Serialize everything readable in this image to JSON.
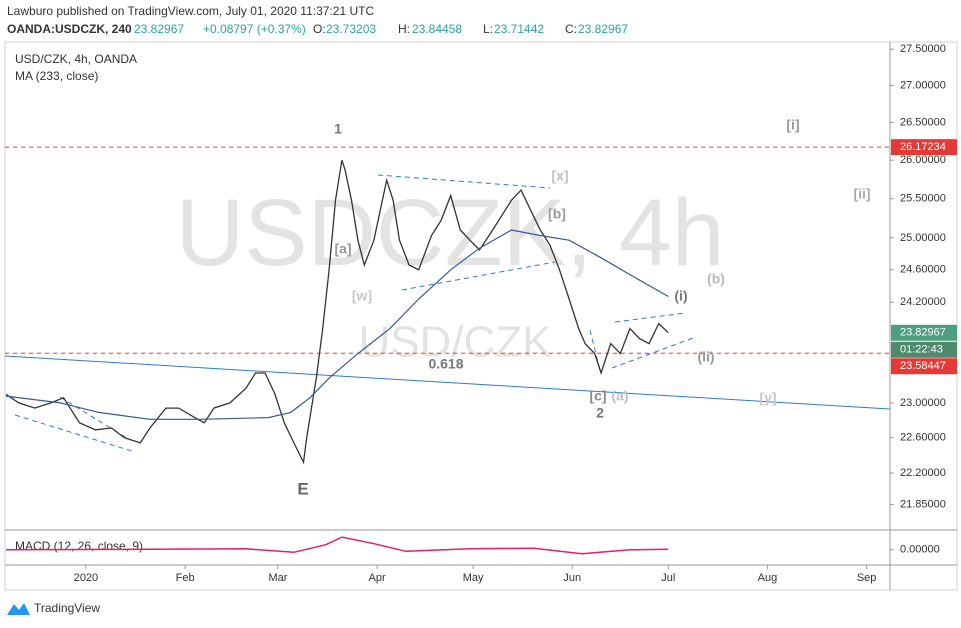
{
  "header": {
    "publisher": "Lawburo published on TradingView.com, July 01, 2020 11:37:21 UTC",
    "symbol": "OANDA:USDCZK, 240",
    "last": 23.82967,
    "change": "+0.08797 (+0.37%)",
    "ohlc": [
      {
        "label": "O:",
        "value": 23.73203
      },
      {
        "label": "H:",
        "value": 23.84458
      },
      {
        "label": "L:",
        "value": 23.71442
      },
      {
        "label": "C:",
        "value": 23.82967
      }
    ]
  },
  "chart_data": [
    {
      "type": "line",
      "title": "USD/CZK, 4h, OANDA",
      "watermark": "USDCZK, 4h",
      "watermark_sub": "USD/CZK",
      "log_scale": true,
      "grid": false,
      "series": [
        {
          "name": "USD/CZK, 4h, OANDA",
          "color": "#333333",
          "x": [
            -25,
            -21,
            -16,
            -11,
            -7,
            -2,
            3,
            8,
            12,
            17,
            20,
            25,
            29,
            34,
            37,
            40,
            45,
            50,
            53,
            56,
            59,
            62,
            65,
            68,
            69,
            72,
            74,
            76,
            78,
            80,
            81,
            83,
            85,
            87,
            90,
            94,
            96,
            98,
            101,
            104,
            108,
            111,
            114,
            117,
            120,
            123,
            126,
            129,
            133,
            136,
            139,
            142,
            145,
            148,
            151,
            154,
            156,
            159,
            161,
            164,
            167,
            170,
            173,
            176,
            179,
            182
          ],
          "values": [
            23.1,
            23.0,
            22.94,
            23.0,
            23.06,
            22.77,
            22.69,
            22.71,
            22.6,
            22.54,
            22.71,
            22.94,
            22.94,
            22.83,
            22.77,
            22.94,
            23.0,
            23.17,
            23.35,
            23.35,
            23.11,
            22.77,
            22.54,
            22.32,
            22.6,
            23.29,
            23.88,
            24.6,
            25.48,
            26.0,
            25.87,
            25.48,
            24.97,
            24.66,
            24.97,
            25.74,
            25.48,
            24.97,
            24.66,
            24.6,
            25.03,
            25.22,
            25.54,
            25.1,
            24.97,
            24.85,
            25.03,
            25.22,
            25.48,
            25.61,
            25.35,
            25.1,
            24.91,
            24.6,
            24.24,
            23.88,
            23.7,
            23.58,
            23.35,
            23.7,
            23.58,
            23.88,
            23.76,
            23.7,
            23.94,
            23.83
          ]
        },
        {
          "name": "MA (233, close)",
          "color": "#3a5894",
          "x": [
            -25,
            -8,
            4,
            20,
            36,
            57,
            64,
            70,
            76,
            85,
            95,
            104,
            114,
            123,
            133,
            142,
            151,
            161,
            170,
            182
          ],
          "values": [
            23.08,
            23.0,
            22.89,
            22.81,
            22.81,
            22.83,
            22.89,
            23.06,
            23.29,
            23.58,
            23.88,
            24.24,
            24.6,
            24.87,
            25.1,
            25.03,
            24.97,
            24.75,
            24.54,
            24.27
          ]
        }
      ],
      "xlim": [
        -25.3,
        251.3
      ],
      "xticks": [
        {
          "value": 0,
          "label": "2020"
        },
        {
          "value": 31,
          "label": "Feb"
        },
        {
          "value": 60,
          "label": "Mar"
        },
        {
          "value": 91,
          "label": "Apr"
        },
        {
          "value": 121,
          "label": "May"
        },
        {
          "value": 152,
          "label": "Jun"
        },
        {
          "value": 182,
          "label": "Jul"
        },
        {
          "value": 213,
          "label": "Aug"
        },
        {
          "value": 244,
          "label": "Sep"
        }
      ],
      "ylim": [
        21.57,
        27.6
      ],
      "yticks": [
        {
          "value": 27.5,
          "label": "27.50000"
        },
        {
          "value": 27,
          "label": "27.00000"
        },
        {
          "value": 26.5,
          "label": "26.50000"
        },
        {
          "value": 26,
          "label": "26.00000"
        },
        {
          "value": 25.5,
          "label": "25.50000"
        },
        {
          "value": 25,
          "label": "25.00000"
        },
        {
          "value": 24.6,
          "label": "24.60000"
        },
        {
          "value": 24.2,
          "label": "24.20000"
        },
        {
          "value": 23,
          "label": "23.00000"
        },
        {
          "value": 22.6,
          "label": "22.60000"
        },
        {
          "value": 22.2,
          "label": "22.20000"
        },
        {
          "value": 21.85,
          "label": "21.85000"
        }
      ],
      "levels": [
        26.17234,
        23.58447
      ],
      "last_price": 23.82967,
      "countdown": "01:22:43",
      "annotations": [
        "1",
        "[i]",
        "[ii]",
        "[x]",
        "[b]",
        "[a]",
        "[w]",
        "(b)",
        "(i)",
        "0.618",
        "(ii)",
        "[c]",
        "(a)",
        "[y]",
        "2",
        "E"
      ]
    },
    {
      "type": "line",
      "title": "MACD (12, 26, close, 9)",
      "color": "#e91e63",
      "x": [
        -25,
        20,
        50,
        65,
        75,
        80,
        90,
        100,
        120,
        140,
        155,
        170,
        182
      ],
      "values": [
        0,
        0.01,
        0.02,
        -0.05,
        0.1,
        0.25,
        0.12,
        -0.03,
        0.02,
        0.03,
        -0.08,
        0,
        0.01
      ],
      "ylim": [
        -0.3,
        0.35
      ],
      "yticks": [
        {
          "value": 0,
          "label": "0.00000"
        }
      ]
    }
  ],
  "footer": {
    "brand": "TradingView"
  }
}
